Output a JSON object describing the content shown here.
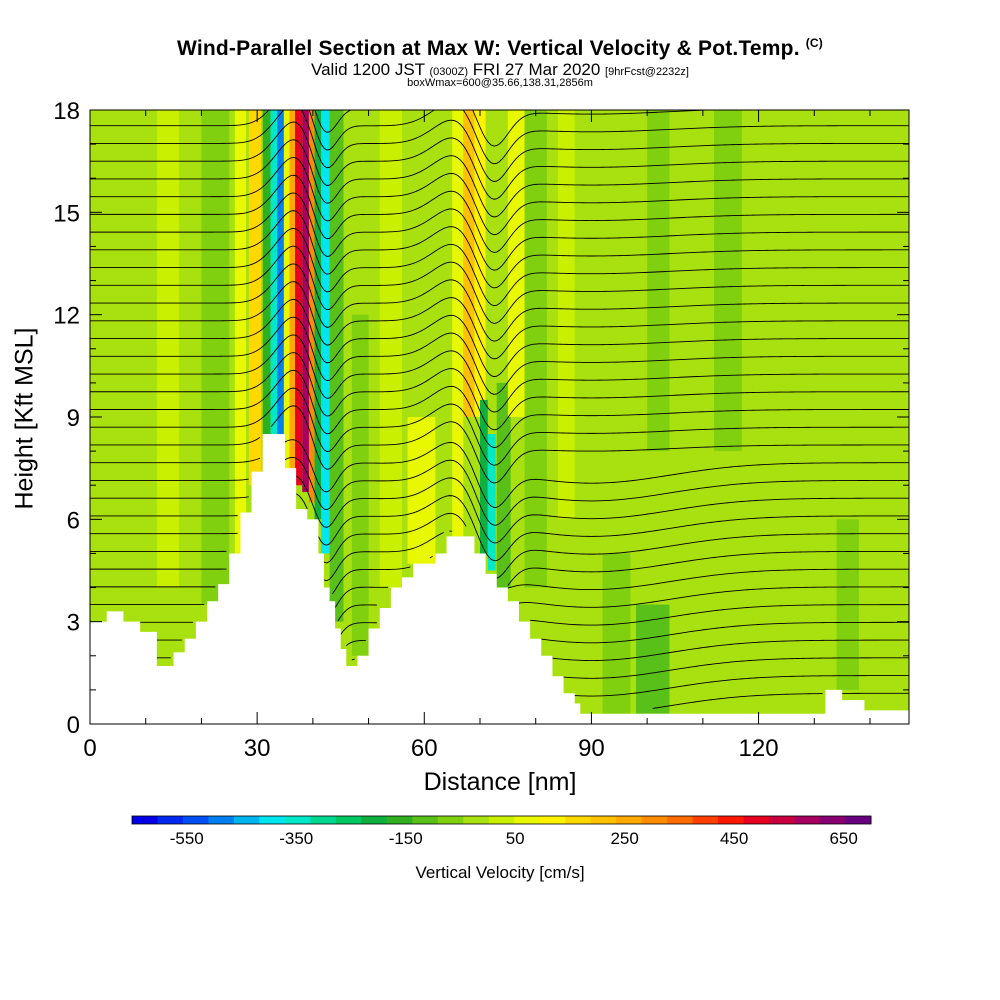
{
  "chart_data": {
    "type": "heatmap",
    "title": "Wind-Parallel Section at Max W: Vertical Velocity & Pot.Temp.",
    "title_mark": "(C)",
    "subtitle_main": "Valid 1200 JST",
    "subtitle_utc": "(0300Z)",
    "subtitle_date": "FRI 27 Mar 2020",
    "subtitle_fcst": "[9hrFcst@2232z]",
    "subtitle2": "boxWmax=600@35.66,138.31,2856m",
    "xlabel": "Distance [nm]",
    "ylabel": "Height [Kft MSL]",
    "xlim": [
      0,
      147
    ],
    "ylim": [
      0,
      18
    ],
    "x_ticks": [
      "0",
      "30",
      "60",
      "90",
      "120"
    ],
    "x_tick_values": [
      0,
      30,
      60,
      90,
      120
    ],
    "y_ticks": [
      "0",
      "3",
      "6",
      "9",
      "12",
      "15",
      "18"
    ],
    "y_tick_values": [
      0,
      3,
      6,
      9,
      12,
      15,
      18
    ],
    "colorbar": {
      "label": "Vertical Velocity [cm/s]",
      "tick_labels": [
        "-550",
        "-350",
        "-150",
        "50",
        "250",
        "450",
        "650"
      ],
      "tick_values": [
        -550,
        -350,
        -150,
        50,
        250,
        450,
        650
      ],
      "range": [
        -650,
        700
      ],
      "step": 50,
      "colors": [
        "#0000e8",
        "#0028f0",
        "#0050f5",
        "#0080f0",
        "#00b4f0",
        "#00e6f0",
        "#00e8c8",
        "#00d890",
        "#00c860",
        "#10b040",
        "#30b020",
        "#58c018",
        "#80d010",
        "#a8e010",
        "#c8f000",
        "#e8f800",
        "#fff200",
        "#ffd800",
        "#ffc000",
        "#ffa800",
        "#ff8c00",
        "#ff6c00",
        "#ff4000",
        "#ff1800",
        "#e80020",
        "#c80040",
        "#a80060",
        "#880070",
        "#680080"
      ]
    },
    "terrain_profile": [
      [
        0,
        3.0
      ],
      [
        3,
        3.0
      ],
      [
        3,
        3.3
      ],
      [
        6,
        3.3
      ],
      [
        6,
        3.0
      ],
      [
        9,
        3.0
      ],
      [
        9,
        2.7
      ],
      [
        12,
        2.7
      ],
      [
        12,
        1.7
      ],
      [
        15,
        1.7
      ],
      [
        15,
        2.1
      ],
      [
        17,
        2.1
      ],
      [
        17,
        2.5
      ],
      [
        19,
        2.5
      ],
      [
        19,
        3.0
      ],
      [
        21,
        3.0
      ],
      [
        21,
        3.6
      ],
      [
        23,
        3.6
      ],
      [
        23,
        4.1
      ],
      [
        25,
        4.1
      ],
      [
        25,
        5.0
      ],
      [
        27,
        5.0
      ],
      [
        27,
        6.2
      ],
      [
        29,
        6.2
      ],
      [
        29,
        7.4
      ],
      [
        31,
        7.4
      ],
      [
        31,
        8.5
      ],
      [
        33,
        8.5
      ],
      [
        33,
        8.5
      ],
      [
        35,
        8.5
      ],
      [
        35,
        7.5
      ],
      [
        37,
        7.5
      ],
      [
        37,
        6.3
      ],
      [
        39,
        6.3
      ],
      [
        39,
        6.0
      ],
      [
        41,
        6.0
      ],
      [
        41,
        5.0
      ],
      [
        42,
        5.0
      ],
      [
        42,
        4.0
      ],
      [
        43,
        4.0
      ],
      [
        43,
        3.6
      ],
      [
        44,
        3.6
      ],
      [
        44,
        2.8
      ],
      [
        45,
        2.8
      ],
      [
        45,
        2.2
      ],
      [
        46,
        2.2
      ],
      [
        46,
        1.7
      ],
      [
        48,
        1.7
      ],
      [
        48,
        2.0
      ],
      [
        50,
        2.0
      ],
      [
        50,
        2.8
      ],
      [
        52,
        2.8
      ],
      [
        52,
        3.4
      ],
      [
        54,
        3.4
      ],
      [
        54,
        4.0
      ],
      [
        56,
        4.0
      ],
      [
        56,
        4.3
      ],
      [
        58,
        4.3
      ],
      [
        58,
        4.7
      ],
      [
        62,
        4.7
      ],
      [
        62,
        5.0
      ],
      [
        64,
        5.0
      ],
      [
        64,
        5.5
      ],
      [
        66,
        5.5
      ],
      [
        66,
        5.5
      ],
      [
        69,
        5.5
      ],
      [
        69,
        5.0
      ],
      [
        71,
        5.0
      ],
      [
        71,
        4.4
      ],
      [
        73,
        4.4
      ],
      [
        73,
        4.0
      ],
      [
        75,
        4.0
      ],
      [
        75,
        3.6
      ],
      [
        77,
        3.6
      ],
      [
        77,
        3.0
      ],
      [
        79,
        3.0
      ],
      [
        79,
        2.5
      ],
      [
        81,
        2.5
      ],
      [
        81,
        2.0
      ],
      [
        83,
        2.0
      ],
      [
        83,
        1.4
      ],
      [
        85,
        1.4
      ],
      [
        85,
        0.9
      ],
      [
        87,
        0.9
      ],
      [
        87,
        0.6
      ],
      [
        88,
        0.6
      ],
      [
        88,
        0.3
      ],
      [
        105,
        0.3
      ],
      [
        110,
        0.3
      ],
      [
        132,
        0.3
      ],
      [
        132,
        1.0
      ],
      [
        135,
        1.0
      ],
      [
        135,
        0.7
      ],
      [
        139,
        0.7
      ],
      [
        139,
        0.4
      ],
      [
        143,
        0.4
      ],
      [
        147,
        0.4
      ]
    ],
    "bands": [
      {
        "x": 4,
        "w": 3,
        "level": 0,
        "vmin": 2.5,
        "vmax": 18
      },
      {
        "x": 12,
        "w": 4,
        "level": 50,
        "vmin": 4,
        "vmax": 18
      },
      {
        "x": 20,
        "w": 5,
        "level": -50,
        "vmin": 3.5,
        "vmax": 18
      },
      {
        "x": 26,
        "w": 2,
        "level": 100,
        "vmin": 5,
        "vmax": 18
      },
      {
        "x": 28.5,
        "w": 2.2,
        "level": 200,
        "vmin": 7,
        "vmax": 18
      },
      {
        "x": 31,
        "w": 1.4,
        "level": -150,
        "vmin": 8.5,
        "vmax": 18
      },
      {
        "x": 32.4,
        "w": 1.2,
        "level": -350,
        "vmin": 8.5,
        "vmax": 18
      },
      {
        "x": 33.6,
        "w": 1.2,
        "level": -500,
        "vmin": 8.5,
        "vmax": 18
      },
      {
        "x": 34.8,
        "w": 1.0,
        "level": 100,
        "vmin": 7.5,
        "vmax": 18
      },
      {
        "x": 35.8,
        "w": 1.0,
        "level": 300,
        "vmin": 7.5,
        "vmax": 18
      },
      {
        "x": 36.8,
        "w": 1.3,
        "level": 550,
        "vmin": 7.0,
        "vmax": 18
      },
      {
        "x": 38.1,
        "w": 1.2,
        "level": 650,
        "vmin": 6.8,
        "vmax": 18
      },
      {
        "x": 39.3,
        "w": 1.0,
        "level": 350,
        "vmin": 6.5,
        "vmax": 18
      },
      {
        "x": 40.3,
        "w": 1.2,
        "level": -200,
        "vmin": 6.0,
        "vmax": 18
      },
      {
        "x": 41.5,
        "w": 1.5,
        "level": -400,
        "vmin": 5.0,
        "vmax": 18
      },
      {
        "x": 43,
        "w": 2.5,
        "level": -100,
        "vmin": 3.0,
        "vmax": 18
      },
      {
        "x": 47,
        "w": 3,
        "level": -50,
        "vmin": 2.0,
        "vmax": 12
      },
      {
        "x": 52,
        "w": 4,
        "level": 50,
        "vmin": 4.0,
        "vmax": 18
      },
      {
        "x": 57,
        "w": 5,
        "level": 100,
        "vmin": 4.7,
        "vmax": 9
      },
      {
        "x": 65,
        "w": 2,
        "level": 100,
        "vmin": 5.5,
        "vmax": 18
      },
      {
        "x": 67,
        "w": 2,
        "level": 250,
        "vmin": 9,
        "vmax": 18
      },
      {
        "x": 69,
        "w": 2,
        "level": 150,
        "vmin": 9,
        "vmax": 18
      },
      {
        "x": 70,
        "w": 1.4,
        "level": -200,
        "vmin": 5.0,
        "vmax": 9.5
      },
      {
        "x": 71.4,
        "w": 1.4,
        "level": -350,
        "vmin": 4.5,
        "vmax": 8.5
      },
      {
        "x": 73,
        "w": 2.5,
        "level": -100,
        "vmin": 4.0,
        "vmax": 10
      },
      {
        "x": 75,
        "w": 3,
        "level": 100,
        "vmin": 9,
        "vmax": 18
      },
      {
        "x": 78,
        "w": 4,
        "level": -50,
        "vmin": 4,
        "vmax": 18
      },
      {
        "x": 84,
        "w": 3,
        "level": 50,
        "vmin": 6,
        "vmax": 18
      },
      {
        "x": 92,
        "w": 5,
        "level": -50,
        "vmin": 0.3,
        "vmax": 5
      },
      {
        "x": 98,
        "w": 6,
        "level": -100,
        "vmin": 0.3,
        "vmax": 3.5
      },
      {
        "x": 100,
        "w": 4,
        "level": -50,
        "vmin": 8,
        "vmax": 18
      },
      {
        "x": 112,
        "w": 5,
        "level": -50,
        "vmin": 8,
        "vmax": 18
      },
      {
        "x": 124,
        "w": 6,
        "level": 0,
        "vmin": 4,
        "vmax": 18
      },
      {
        "x": 134,
        "w": 4,
        "level": -50,
        "vmin": 1.0,
        "vmax": 6
      },
      {
        "x": 141,
        "w": 6,
        "level": 0,
        "vmin": 0.4,
        "vmax": 18
      }
    ]
  }
}
